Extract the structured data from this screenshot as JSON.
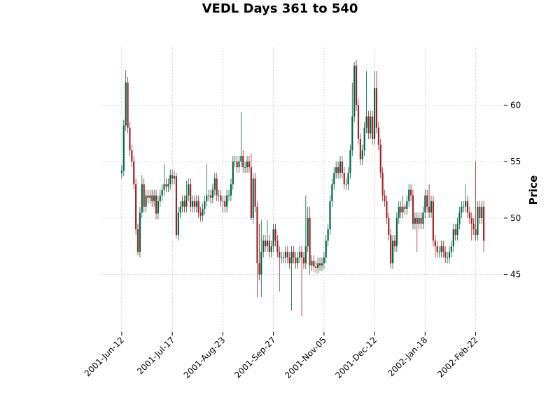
{
  "chart_data": {
    "type": "candlestick",
    "title": "VEDL Days 361 to 540",
    "y_label": "Price",
    "up_color": "#006340",
    "down_color": "#a02128",
    "grid": true,
    "xlim": [
      -10,
      189
    ],
    "ylim": [
      39.9,
      65.1
    ],
    "xticks": [
      {
        "value": 0,
        "label": "2001-Jun-12"
      },
      {
        "value": 25,
        "label": "2001-Jul-17"
      },
      {
        "value": 50,
        "label": "2001-Aug-23"
      },
      {
        "value": 75,
        "label": "2001-Sep-27"
      },
      {
        "value": 100,
        "label": "2001-Nov-05"
      },
      {
        "value": 125,
        "label": "2001-Dec-12"
      },
      {
        "value": 150,
        "label": "2002-Jan-18"
      },
      {
        "value": 175,
        "label": "2002-Feb-22"
      }
    ],
    "yticks": [
      45,
      50,
      55,
      60
    ],
    "open": [
      54,
      54.2,
      58.2,
      62,
      58,
      56,
      55,
      53,
      49,
      47,
      50.5,
      53,
      51,
      52,
      51.8,
      52,
      51.5,
      52,
      50.4,
      51.5,
      52,
      52.5,
      53,
      52.8,
      53,
      53.8,
      53.5,
      53.7,
      48.5,
      50.5,
      51,
      51.5,
      51,
      52,
      53,
      51,
      51.5,
      51,
      51.5,
      50.5,
      50.2,
      50.8,
      51.5,
      52,
      52,
      51.8,
      52.5,
      53.5,
      52,
      52,
      51.5,
      51.5,
      51,
      52,
      52,
      53,
      55,
      55,
      54.5,
      55,
      55.5,
      54.5,
      54.5,
      55,
      54.5,
      50,
      53.5,
      51,
      46,
      45,
      47,
      48,
      47.5,
      48,
      47,
      47.5,
      49,
      48,
      47,
      46.5,
      46.5,
      46.5,
      47,
      46.5,
      46,
      47,
      46.5,
      46,
      46.5,
      47,
      46.5,
      46,
      47.5,
      50,
      45.8,
      46.2,
      45.7,
      45.6,
      46,
      45.8,
      46,
      46.5,
      48,
      49,
      51.5,
      53,
      54,
      54.5,
      54,
      55,
      54,
      53,
      53,
      54,
      56,
      59,
      63.5,
      60,
      57,
      55.2,
      56,
      58,
      59,
      57.5,
      59,
      57,
      61.5,
      58,
      56.5,
      54,
      52,
      51.5,
      50,
      48.5,
      46,
      48,
      47.5,
      50,
      51,
      50.5,
      51,
      50.8,
      51.5,
      52.5,
      52,
      49.5,
      50,
      49.5,
      50,
      49.5,
      50.5,
      52,
      51,
      50.5,
      51.5,
      48,
      47.5,
      47,
      47,
      47.5,
      47,
      46.5,
      46.5,
      47,
      47.5,
      49,
      48.5,
      49.5,
      50.5,
      51,
      51,
      51.5,
      50.5,
      50,
      49.5,
      49,
      48.5,
      51,
      50,
      51
    ],
    "high": [
      54.7,
      58.7,
      63.1,
      62.5,
      58.5,
      56.5,
      55.5,
      53.5,
      49.5,
      51,
      53.8,
      53.5,
      52.5,
      52.5,
      52.5,
      52.5,
      52.5,
      52.5,
      52,
      52.5,
      53,
      54.8,
      53.5,
      53.5,
      54.3,
      54.3,
      54.2,
      54,
      51,
      51.5,
      52,
      52,
      53.3,
      53.5,
      53.5,
      52,
      52,
      52,
      52,
      51,
      51.3,
      52,
      54.8,
      52.5,
      52.5,
      53,
      54,
      54,
      52.5,
      52.5,
      52,
      52,
      52.5,
      52.5,
      53.5,
      55.5,
      55.5,
      55.5,
      55.5,
      59.4,
      56,
      55,
      55.5,
      55.5,
      55.7,
      54,
      54,
      51.5,
      49.5,
      49.8,
      48.5,
      48.5,
      49.8,
      48.5,
      48,
      49.5,
      49.5,
      48.5,
      47.5,
      47,
      47,
      47.5,
      47.5,
      47,
      47.5,
      47.5,
      47,
      47,
      47.5,
      47.5,
      47,
      52,
      51,
      51,
      46.7,
      46.7,
      46.2,
      46.5,
      46.5,
      46.5,
      47,
      48.5,
      49.5,
      52,
      53.5,
      54.5,
      55,
      55,
      55.5,
      55.5,
      54.5,
      53.5,
      54.5,
      56.5,
      62,
      63.8,
      64,
      60.5,
      57.5,
      56.5,
      58.5,
      63,
      59.5,
      59.5,
      59.5,
      63,
      63,
      58.5,
      57,
      54.5,
      52.5,
      52,
      50.5,
      49,
      48.5,
      48.5,
      50.5,
      51.5,
      51.5,
      52,
      51.3,
      52,
      53,
      53,
      52.5,
      50.5,
      50.5,
      50.5,
      50.5,
      51,
      52.5,
      52.5,
      53,
      52,
      52,
      48.5,
      48,
      47.5,
      48,
      48,
      47.5,
      47,
      47.5,
      48,
      49.5,
      49.5,
      50,
      51,
      51.5,
      51.5,
      53,
      52,
      51,
      50.5,
      50,
      55,
      51.5,
      51.5,
      51.5,
      51.5
    ],
    "low": [
      53.5,
      53.7,
      57.7,
      57.5,
      55.5,
      54.5,
      52.5,
      48.5,
      46.7,
      46.5,
      50,
      50.5,
      50.5,
      51.3,
      51.3,
      51,
      51,
      49.9,
      49.9,
      51,
      51.5,
      52,
      52.3,
      52.3,
      52.5,
      53,
      53,
      48.2,
      48,
      50,
      50.5,
      50.5,
      50.5,
      51.5,
      50.5,
      50.5,
      50.5,
      50.5,
      50,
      49.7,
      49.7,
      50.3,
      51,
      51.5,
      51.3,
      51.3,
      52,
      51.5,
      51.5,
      51,
      50.5,
      50.5,
      50.5,
      51.5,
      51.5,
      52.5,
      54.5,
      54,
      54,
      54.5,
      54,
      54,
      54,
      54,
      49.8,
      49.5,
      50.5,
      43,
      44.5,
      43,
      46.5,
      47,
      47,
      46.5,
      46.5,
      47,
      47.5,
      46.5,
      43.5,
      46,
      46,
      46,
      46,
      45.5,
      41.8,
      46,
      45.5,
      45.5,
      46,
      41.3,
      45.5,
      45.5,
      47,
      45,
      45.3,
      45.2,
      45.1,
      45.1,
      45.3,
      45.3,
      45.5,
      46,
      47.5,
      48.5,
      51,
      52.5,
      53.5,
      53.5,
      53.5,
      53.5,
      52.5,
      52.5,
      52.5,
      53.5,
      55.5,
      58.5,
      59.5,
      56.5,
      54.7,
      54.7,
      55.5,
      57.5,
      57,
      57,
      56.5,
      56.5,
      57.5,
      56,
      53.5,
      51.5,
      51,
      49.5,
      48,
      45.5,
      45.5,
      47,
      47,
      49.5,
      50,
      50,
      50.3,
      50.3,
      51,
      51.5,
      49,
      49,
      47,
      49,
      49,
      49,
      50,
      50.5,
      50,
      50,
      47.5,
      46.5,
      46.5,
      46.5,
      46.5,
      46.5,
      46,
      46,
      46,
      46.5,
      47,
      48,
      48,
      49,
      50,
      50.5,
      50.5,
      50,
      49.5,
      48,
      48.5,
      48,
      48,
      49.5,
      49.5,
      47
    ],
    "close": [
      54.2,
      58.2,
      62,
      58,
      56,
      55,
      53,
      49,
      47,
      50.5,
      53,
      51,
      52,
      51.8,
      52,
      51.5,
      52,
      50.4,
      51.5,
      52,
      52.5,
      53,
      52.8,
      53,
      53.8,
      53.5,
      53.7,
      48.5,
      50.5,
      51,
      51.5,
      51,
      52,
      53,
      51,
      51.5,
      51,
      51.5,
      50.5,
      50.2,
      50.8,
      51.5,
      52,
      52,
      51.8,
      52.5,
      53.5,
      52,
      52,
      51.5,
      51.5,
      51,
      52,
      52,
      53,
      55,
      55,
      54.5,
      55,
      55.5,
      54.5,
      54.5,
      55,
      54.5,
      50,
      53.5,
      51,
      46,
      45,
      47,
      48,
      47.5,
      48,
      47,
      47.5,
      49,
      48,
      47,
      46.5,
      46.5,
      46.5,
      47,
      46.5,
      46,
      47,
      46.5,
      46,
      46.5,
      47,
      46.5,
      46,
      47.5,
      50,
      45.8,
      46.2,
      45.7,
      45.6,
      46,
      45.8,
      46,
      46.5,
      48,
      49,
      51.5,
      53,
      54,
      54.5,
      54,
      55,
      54,
      53,
      53,
      54,
      56,
      59,
      63.5,
      60,
      57,
      55.2,
      56,
      58,
      59,
      57.5,
      59,
      57,
      61.5,
      58,
      56.5,
      54,
      52,
      51.5,
      50,
      48.5,
      46,
      48,
      47.5,
      50,
      51,
      50.5,
      51,
      50.8,
      51.5,
      52.5,
      52,
      49.5,
      50,
      49.5,
      50,
      49.5,
      50.5,
      52,
      51,
      50.5,
      51.5,
      48,
      47.5,
      47,
      47,
      47.5,
      47,
      46.5,
      46.5,
      47,
      47.5,
      49,
      48.5,
      49.5,
      50.5,
      51,
      51,
      51.5,
      50.5,
      50,
      49.5,
      49,
      48.5,
      51,
      50,
      51,
      48
    ]
  }
}
